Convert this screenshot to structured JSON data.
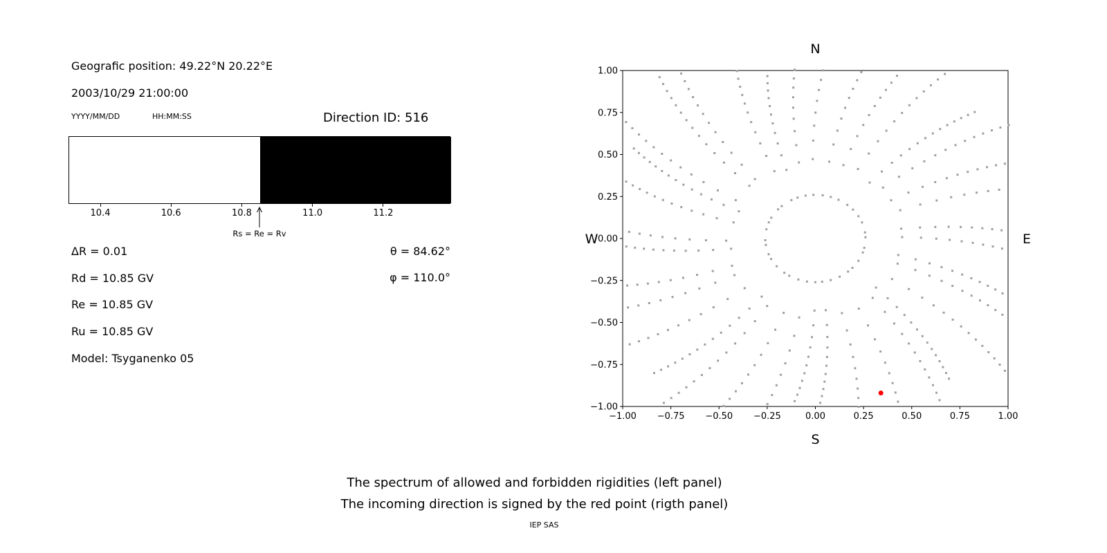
{
  "left_panel": {
    "geographic_position": "Geografic position: 49.22°N 20.22°E",
    "datetime": "2003/10/29 21:00:00",
    "date_format_label": "YYYY/MM/DD",
    "time_format_label": "HH:MM:SS",
    "direction_id_label": "Direction ID: 516",
    "delta_r": "ΔR = 0.01",
    "rd": "Rd = 10.85 GV",
    "re": "Re = 10.85 GV",
    "ru": "Ru = 10.85 GV",
    "model": "Model: Tsyganenko 05",
    "theta": "θ = 84.62°",
    "phi": "φ = 110.0°"
  },
  "caption": {
    "line1": "The spectrum of allowed and forbidden rigidities (left panel)",
    "line2": "The incoming direction is signed by the red point (rigth panel)",
    "credit": "IEP SAS"
  },
  "chart_data": [
    {
      "id": "rigidity-spectrum",
      "type": "bar",
      "description": "Horizontal band: allowed rigidities shown white, forbidden rigidities shown black",
      "x_range": [
        10.31,
        11.39
      ],
      "regions": [
        {
          "label": "allowed",
          "from": 10.31,
          "to": 10.85,
          "color": "#ffffff"
        },
        {
          "label": "forbidden",
          "from": 10.85,
          "to": 11.39,
          "color": "#000000"
        }
      ],
      "xticks": [
        10.4,
        10.6,
        10.8,
        11.0,
        11.2
      ],
      "xtick_labels": [
        "10.4",
        "10.6",
        "10.8",
        "11.0",
        "11.2"
      ],
      "annotation": {
        "x": 10.85,
        "label": "Rs = Re = Rv"
      }
    },
    {
      "id": "incoming-direction-map",
      "type": "scatter",
      "description": "Radial spokes of gray asymptotic-direction points; red point marks the incoming direction",
      "xlim": [
        -1.0,
        1.0
      ],
      "ylim": [
        -1.0,
        1.0
      ],
      "xticks": [
        -1.0,
        -0.75,
        -0.5,
        -0.25,
        0.0,
        0.25,
        0.5,
        0.75,
        1.0
      ],
      "yticks": [
        1.0,
        0.75,
        0.5,
        0.25,
        0.0,
        -0.25,
        -0.5,
        -0.75,
        -1.0
      ],
      "xtick_labels": [
        "−1.00",
        "−0.75",
        "−0.50",
        "−0.25",
        "0.00",
        "0.25",
        "0.50",
        "0.75",
        "1.00"
      ],
      "ytick_labels": [
        "1.00",
        "0.75",
        "0.50",
        "0.25",
        "0.00",
        "−0.25",
        "−0.50",
        "−0.75",
        "−1.00"
      ],
      "compass": {
        "top": "N",
        "bottom": "S",
        "left": "W",
        "right": "E"
      },
      "point_color": "#9e9e9e",
      "highlight_point": {
        "x": 0.34,
        "y": -0.92,
        "color": "#ff0000",
        "label": "incoming direction"
      },
      "spokes": {
        "count": 36,
        "angle_start_deg": 0,
        "angle_step_deg": 10,
        "angle_jitter_deg": 2.5,
        "inner_radius": 0.26,
        "outer_radius_min": 1.08,
        "outer_radius_max": 1.32,
        "points_per_spoke": 15,
        "density_power": 0.6,
        "twist_deg": -8
      }
    }
  ]
}
